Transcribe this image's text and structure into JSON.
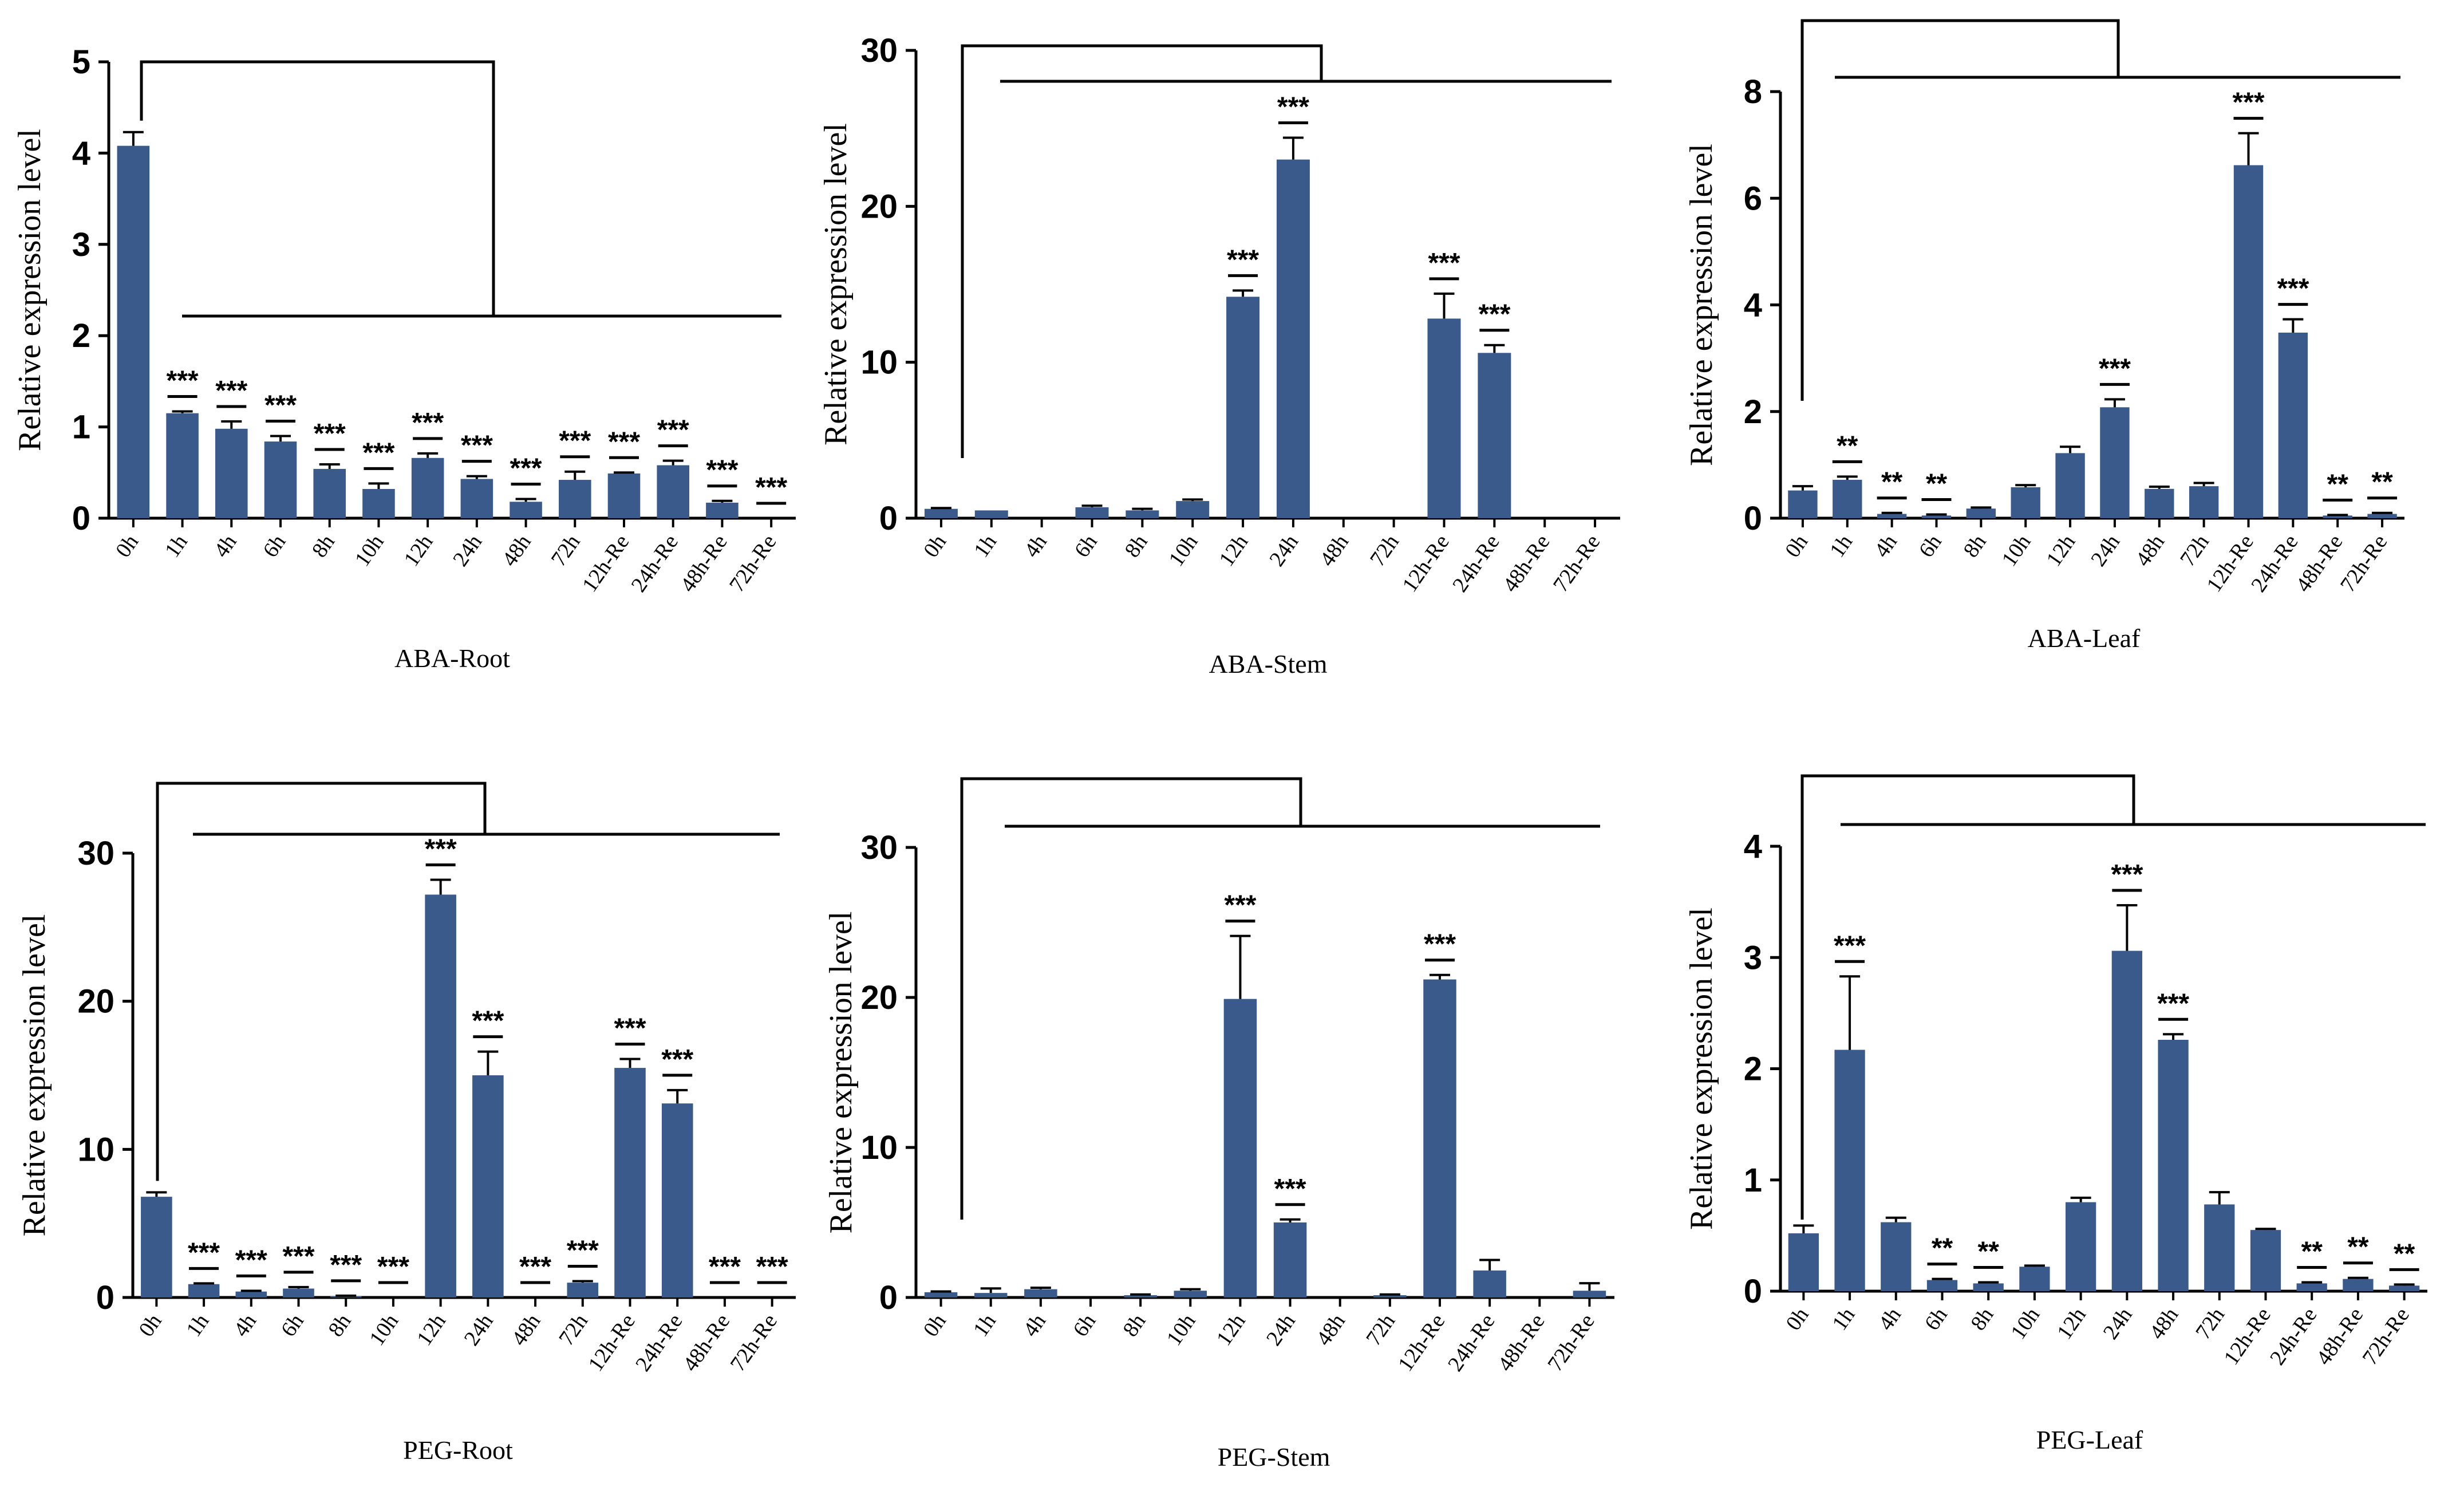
{
  "figure": {
    "bar_color": "#3b5a8c",
    "axis_color": "#000000"
  },
  "chart_data": [
    {
      "type": "bar",
      "title": "ABA-Root",
      "ylabel": "Relative expression level",
      "ylim": [
        0,
        5
      ],
      "yticks": [
        "0",
        "1",
        "2",
        "3",
        "4",
        "5"
      ],
      "categories": [
        "0h",
        "1h",
        "4h",
        "6h",
        "8h",
        "10h",
        "12h",
        "24h",
        "48h",
        "72h",
        "12h-Re",
        "24h-Re",
        "48h-Re",
        "72h-Re"
      ],
      "values": [
        4.08,
        1.15,
        0.98,
        0.84,
        0.54,
        0.32,
        0.66,
        0.43,
        0.18,
        0.42,
        0.49,
        0.58,
        0.17,
        0.0
      ],
      "errors": [
        0.15,
        0.02,
        0.08,
        0.06,
        0.05,
        0.06,
        0.05,
        0.03,
        0.03,
        0.09,
        0.01,
        0.05,
        0.02,
        0.0
      ],
      "significance": [
        "",
        "***",
        "***",
        "***",
        "***",
        "***",
        "***",
        "***",
        "***",
        "***",
        "***",
        "***",
        "***",
        "***"
      ]
    },
    {
      "type": "bar",
      "title": "ABA-Stem",
      "ylabel": "Relative expression level",
      "ylim": [
        0,
        30
      ],
      "yticks": [
        "0",
        "10",
        "20",
        "30"
      ],
      "categories": [
        "0h",
        "1h",
        "4h",
        "6h",
        "8h",
        "10h",
        "12h",
        "24h",
        "48h",
        "72h",
        "12h-Re",
        "24h-Re",
        "48h-Re",
        "72h-Re"
      ],
      "values": [
        0.6,
        0.5,
        0.0,
        0.7,
        0.5,
        1.1,
        14.2,
        23.0,
        0.0,
        0.0,
        12.8,
        10.6,
        0.0,
        0.0
      ],
      "errors": [
        0.05,
        0.0,
        0.0,
        0.1,
        0.1,
        0.1,
        0.4,
        1.4,
        0.0,
        0.0,
        1.6,
        0.5,
        0.0,
        0.0
      ],
      "significance": [
        "",
        "",
        "",
        "",
        "",
        "",
        "***",
        "***",
        "",
        "",
        "***",
        "***",
        "",
        ""
      ]
    },
    {
      "type": "bar",
      "title": "ABA-Leaf",
      "ylabel": "Relative expression level",
      "ylim": [
        0,
        8
      ],
      "yticks": [
        "0",
        "2",
        "4",
        "6",
        "8"
      ],
      "categories": [
        "0h",
        "1h",
        "4h",
        "6h",
        "8h",
        "10h",
        "12h",
        "24h",
        "48h",
        "72h",
        "12h-Re",
        "24h-Re",
        "48h-Re",
        "72h-Re"
      ],
      "values": [
        0.52,
        0.72,
        0.08,
        0.05,
        0.18,
        0.58,
        1.22,
        2.08,
        0.55,
        0.6,
        6.62,
        3.48,
        0.05,
        0.08
      ],
      "errors": [
        0.08,
        0.06,
        0.02,
        0.02,
        0.02,
        0.04,
        0.12,
        0.15,
        0.04,
        0.06,
        0.6,
        0.25,
        0.01,
        0.02
      ],
      "significance": [
        "",
        "**",
        "**",
        "**",
        "",
        "",
        "",
        "***",
        "",
        "",
        "***",
        "***",
        "**",
        "**"
      ]
    },
    {
      "type": "bar",
      "title": "PEG-Root",
      "ylabel": "Relative expression level",
      "ylim": [
        0,
        30
      ],
      "yticks": [
        "0",
        "10",
        "20",
        "30"
      ],
      "categories": [
        "0h",
        "1h",
        "4h",
        "6h",
        "8h",
        "10h",
        "12h",
        "24h",
        "48h",
        "72h",
        "12h-Re",
        "24h-Re",
        "48h-Re",
        "72h-Re"
      ],
      "values": [
        6.8,
        0.9,
        0.4,
        0.6,
        0.1,
        0.0,
        27.2,
        15.0,
        0.0,
        1.0,
        15.5,
        13.1,
        0.0,
        0.0
      ],
      "errors": [
        0.3,
        0.05,
        0.05,
        0.1,
        0.02,
        0.0,
        1.0,
        1.6,
        0.0,
        0.1,
        0.6,
        0.9,
        0.0,
        0.0
      ],
      "significance": [
        "",
        "***",
        "***",
        "***",
        "***",
        "***",
        "***",
        "***",
        "***",
        "***",
        "***",
        "***",
        "***",
        "***"
      ]
    },
    {
      "type": "bar",
      "title": "PEG-Stem",
      "ylabel": "Relative expression level",
      "ylim": [
        0,
        30
      ],
      "yticks": [
        "0",
        "10",
        "20",
        "30"
      ],
      "categories": [
        "0h",
        "1h",
        "4h",
        "6h",
        "8h",
        "10h",
        "12h",
        "24h",
        "48h",
        "72h",
        "12h-Re",
        "24h-Re",
        "48h-Re",
        "72h-Re"
      ],
      "values": [
        0.35,
        0.3,
        0.55,
        0.0,
        0.15,
        0.45,
        19.9,
        5.0,
        0.0,
        0.15,
        21.2,
        1.8,
        0.0,
        0.45
      ],
      "errors": [
        0.05,
        0.3,
        0.1,
        0.0,
        0.05,
        0.1,
        4.2,
        0.2,
        0.0,
        0.05,
        0.3,
        0.7,
        0.0,
        0.5
      ],
      "significance": [
        "",
        "",
        "",
        "",
        "",
        "",
        "***",
        "***",
        "",
        "",
        "***",
        "",
        "",
        ""
      ]
    },
    {
      "type": "bar",
      "title": "PEG-Leaf",
      "ylabel": "Relative expression level",
      "ylim": [
        0,
        4
      ],
      "yticks": [
        "0",
        "1",
        "2",
        "3",
        "4"
      ],
      "categories": [
        "0h",
        "1h",
        "4h",
        "6h",
        "8h",
        "10h",
        "12h",
        "24h",
        "48h",
        "72h",
        "12h-Re",
        "24h-Re",
        "48h-Re",
        "72h-Re"
      ],
      "values": [
        0.52,
        2.17,
        0.62,
        0.1,
        0.07,
        0.22,
        0.8,
        3.06,
        2.26,
        0.78,
        0.55,
        0.07,
        0.11,
        0.05
      ],
      "errors": [
        0.07,
        0.66,
        0.04,
        0.01,
        0.01,
        0.01,
        0.04,
        0.41,
        0.05,
        0.11,
        0.01,
        0.01,
        0.01,
        0.01
      ],
      "significance": [
        "",
        "***",
        "",
        "**",
        "**",
        "",
        "",
        "***",
        "***",
        "",
        "",
        "**",
        "**",
        "**"
      ]
    }
  ]
}
